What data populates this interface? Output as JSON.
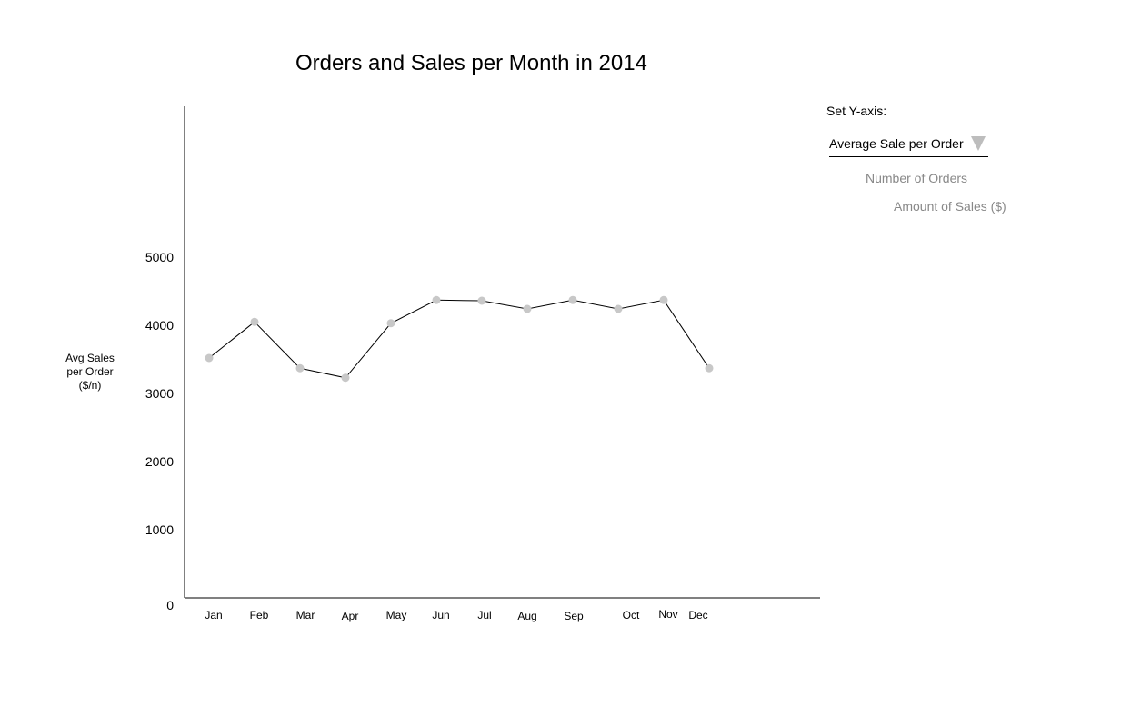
{
  "chart_data": {
    "type": "line",
    "title": "Orders and Sales per Month in 2014",
    "ylabel_lines": [
      "Avg Sales",
      "per Order",
      "($/n)"
    ],
    "categories": [
      "Jan",
      "Feb",
      "Mar",
      "Apr",
      "May",
      "Jun",
      "Jul",
      "Aug",
      "Sep",
      "Oct",
      "Nov",
      "Dec"
    ],
    "values": [
      3520,
      4050,
      3370,
      3230,
      4030,
      4370,
      4360,
      4240,
      4370,
      4240,
      4370,
      3370
    ],
    "y_ticks": [
      "0",
      "1000",
      "2000",
      "3000",
      "4000",
      "5000"
    ],
    "ylim": [
      0,
      7200
    ],
    "grid": false,
    "line_color": "#000000",
    "marker_color": "#c8c8c8"
  },
  "controls": {
    "label": "Set Y-axis:",
    "selected": "Average Sale per Order",
    "options": [
      "Number of Orders",
      "Amount of Sales ($)"
    ],
    "arrow_icon": "dropdown-triangle-icon"
  }
}
